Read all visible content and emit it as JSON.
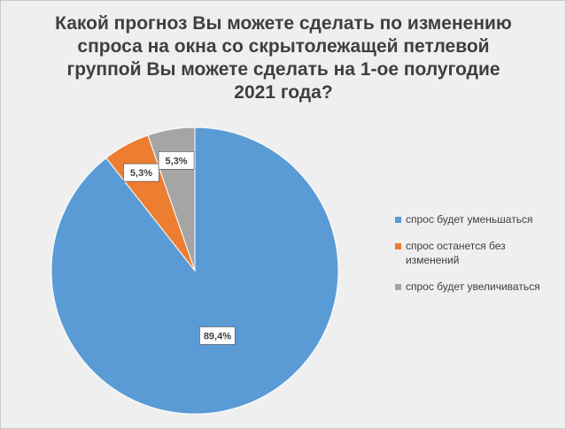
{
  "chart_data": {
    "type": "pie",
    "title": "Какой прогноз Вы можете сделать по изменению спроса на окна со скрытолежащей петлевой группой Вы можете сделать на 1-ое полугодие 2021 года?",
    "slices": [
      {
        "name": "спрос будет уменьшаться",
        "value": 89.4,
        "label": "89,4%",
        "color": "#5b9bd5"
      },
      {
        "name": "спрос останется без изменений",
        "value": 5.3,
        "label": "5,3%",
        "color": "#ed7d31"
      },
      {
        "name": "спрос будет увеличиваться",
        "value": 5.3,
        "label": "5,3%",
        "color": "#a5a5a5"
      }
    ],
    "legend_position": "right"
  }
}
